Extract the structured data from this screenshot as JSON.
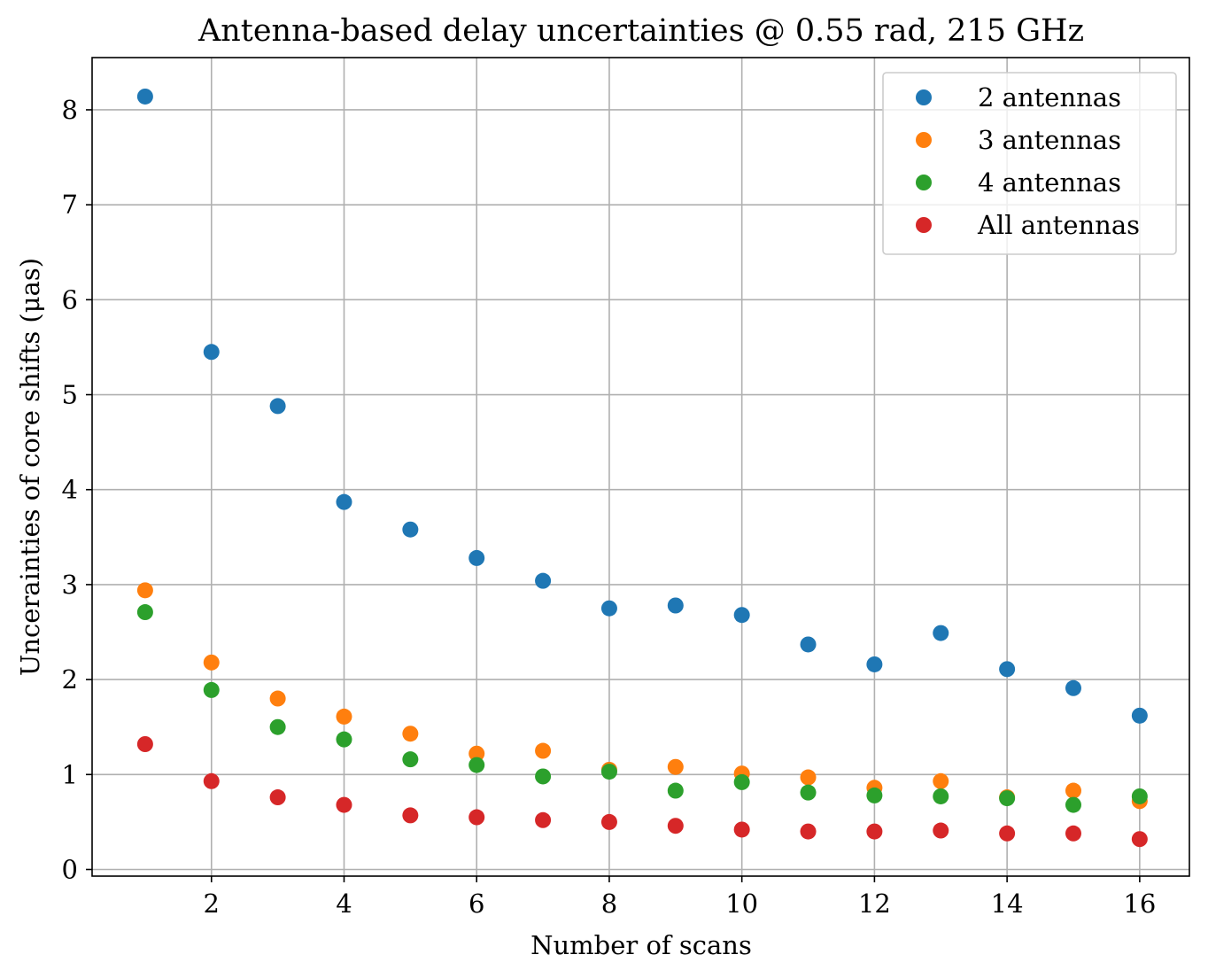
{
  "chart_data": {
    "type": "scatter",
    "title": "Antenna-based delay uncertainties @ 0.55 rad, 215 GHz",
    "xlabel": "Number of scans",
    "ylabel": "Uncerainties of core shifts (μas)",
    "xlim": [
      0.2,
      16.75
    ],
    "ylim": [
      -0.07,
      8.55
    ],
    "xticks": [
      2,
      4,
      6,
      8,
      10,
      12,
      14,
      16
    ],
    "yticks": [
      0,
      1,
      2,
      3,
      4,
      5,
      6,
      7,
      8
    ],
    "grid": true,
    "legend_position": "top-right",
    "x": [
      1,
      2,
      3,
      4,
      5,
      6,
      7,
      8,
      9,
      10,
      11,
      12,
      13,
      14,
      15,
      16
    ],
    "series": [
      {
        "name": "2 antennas",
        "color": "#1f77b4",
        "values": [
          8.14,
          5.45,
          4.88,
          3.87,
          3.58,
          3.28,
          3.04,
          2.75,
          2.78,
          2.68,
          2.37,
          2.16,
          2.49,
          2.11,
          1.91,
          1.62
        ]
      },
      {
        "name": "3 antennas",
        "color": "#ff7f0e",
        "values": [
          2.94,
          2.18,
          1.8,
          1.61,
          1.43,
          1.22,
          1.25,
          1.05,
          1.08,
          1.01,
          0.97,
          0.86,
          0.93,
          0.76,
          0.83,
          0.72
        ]
      },
      {
        "name": "4 antennas",
        "color": "#2ca02c",
        "values": [
          2.71,
          1.89,
          1.5,
          1.37,
          1.16,
          1.1,
          0.98,
          1.03,
          0.83,
          0.92,
          0.81,
          0.78,
          0.77,
          0.75,
          0.68,
          0.77
        ]
      },
      {
        "name": "All antennas",
        "color": "#d62728",
        "values": [
          1.32,
          0.93,
          0.76,
          0.68,
          0.57,
          0.55,
          0.52,
          0.5,
          0.46,
          0.42,
          0.4,
          0.4,
          0.41,
          0.38,
          0.38,
          0.32
        ]
      }
    ]
  }
}
